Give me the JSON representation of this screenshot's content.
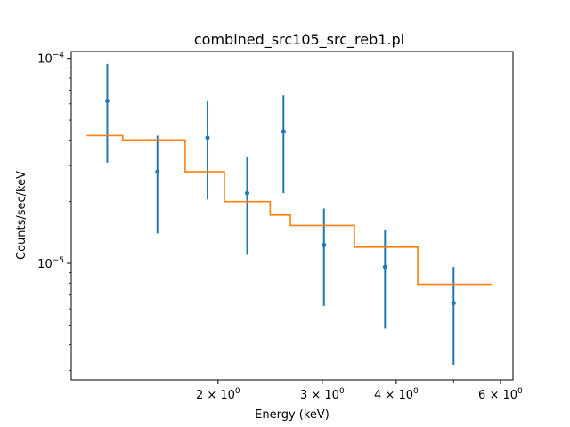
{
  "chart_data": {
    "type": "scatter",
    "title": "combined_src105_src_reb1.pi",
    "xlabel": "Energy (keV)",
    "ylabel": "Counts/sec/keV",
    "xscale": "log",
    "yscale": "log",
    "xlim": [
      1.13,
      6.3
    ],
    "ylim": [
      2.7e-06,
      0.000108
    ],
    "grid": false,
    "colors": {
      "data": "#1f77b4",
      "model": "#ff7f0e"
    },
    "x_ticks": [
      {
        "value": 2,
        "mantissa": "2",
        "base": "10",
        "exp": "0"
      },
      {
        "value": 3,
        "mantissa": "3",
        "base": "10",
        "exp": "0"
      },
      {
        "value": 4,
        "mantissa": "4",
        "base": "10",
        "exp": "0"
      },
      {
        "value": 6,
        "mantissa": "6",
        "base": "10",
        "exp": "0"
      }
    ],
    "x_minor_ticks": [
      5
    ],
    "y_ticks": [
      {
        "value": 1e-05,
        "base": "10",
        "exp": "−5"
      },
      {
        "value": 0.0001,
        "base": "10",
        "exp": "−4"
      }
    ],
    "y_minor_ticks": [
      3e-06,
      4e-06,
      5e-06,
      6e-06,
      7e-06,
      8e-06,
      9e-06,
      2e-05,
      3e-05,
      4e-05,
      5e-05,
      6e-05,
      7e-05,
      8e-05,
      9e-05
    ],
    "series": [
      {
        "kind": "errorbar",
        "points": [
          {
            "x": 1.3,
            "y": 6.2e-05,
            "ylow": 3.1e-05,
            "yhigh": 9.4e-05
          },
          {
            "x": 1.58,
            "y": 2.8e-05,
            "ylow": 1.4e-05,
            "yhigh": 4.2e-05
          },
          {
            "x": 1.92,
            "y": 4.1e-05,
            "ylow": 2.05e-05,
            "yhigh": 6.2e-05
          },
          {
            "x": 2.24,
            "y": 2.2e-05,
            "ylow": 1.1e-05,
            "yhigh": 3.3e-05
          },
          {
            "x": 2.58,
            "y": 4.4e-05,
            "ylow": 2.2e-05,
            "yhigh": 6.6e-05
          },
          {
            "x": 3.02,
            "y": 1.23e-05,
            "ylow": 6.2e-06,
            "yhigh": 1.85e-05
          },
          {
            "x": 3.83,
            "y": 9.6e-06,
            "ylow": 4.8e-06,
            "yhigh": 1.45e-05
          },
          {
            "x": 5.0,
            "y": 6.4e-06,
            "ylow": 3.2e-06,
            "yhigh": 9.6e-06
          }
        ]
      },
      {
        "kind": "step",
        "edges": [
          1.2,
          1.38,
          1.76,
          2.05,
          2.45,
          2.65,
          3.4,
          4.35,
          5.8
        ],
        "values": [
          4.2e-05,
          4e-05,
          2.8e-05,
          2e-05,
          1.72e-05,
          1.53e-05,
          1.2e-05,
          7.9e-06
        ]
      }
    ]
  }
}
